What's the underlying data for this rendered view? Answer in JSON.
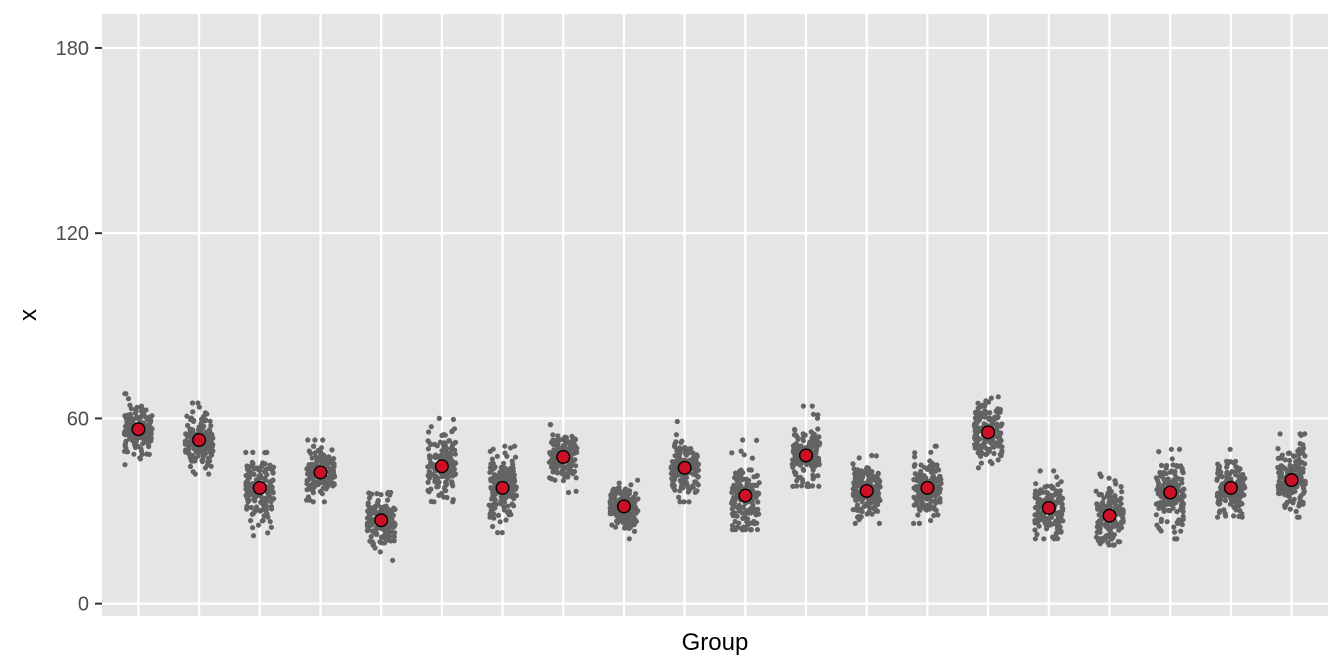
{
  "chart_data": {
    "type": "scatter",
    "title": "",
    "xlabel": "Group",
    "ylabel": "x",
    "ylim": [
      -4,
      191
    ],
    "yticks": [
      0,
      60,
      120,
      180
    ],
    "x_tick_labels_shown": false,
    "grid": true,
    "legend": "none",
    "colors": {
      "panel_background": "#e5e5e5",
      "grid_line": "#ffffff",
      "jitter_point": "#636363",
      "mean_fill": "#cc1126",
      "mean_stroke": "#000000"
    },
    "groups": [
      {
        "mean": 56.5,
        "min": 45,
        "max": 68
      },
      {
        "mean": 53.0,
        "min": 42,
        "max": 65
      },
      {
        "mean": 37.5,
        "min": 22,
        "max": 49
      },
      {
        "mean": 42.5,
        "min": 33,
        "max": 53
      },
      {
        "mean": 27.0,
        "min": 14,
        "max": 36
      },
      {
        "mean": 44.5,
        "min": 33,
        "max": 60
      },
      {
        "mean": 37.5,
        "min": 23,
        "max": 51
      },
      {
        "mean": 47.5,
        "min": 36,
        "max": 58
      },
      {
        "mean": 31.5,
        "min": 21,
        "max": 40
      },
      {
        "mean": 44.0,
        "min": 33,
        "max": 59
      },
      {
        "mean": 35.0,
        "min": 24,
        "max": 53
      },
      {
        "mean": 48.0,
        "min": 38,
        "max": 64
      },
      {
        "mean": 36.5,
        "min": 26,
        "max": 48
      },
      {
        "mean": 37.5,
        "min": 26,
        "max": 51
      },
      {
        "mean": 55.5,
        "min": 44,
        "max": 67
      },
      {
        "mean": 31.0,
        "min": 21,
        "max": 43
      },
      {
        "mean": 28.5,
        "min": 19,
        "max": 42
      },
      {
        "mean": 36.0,
        "min": 21,
        "max": 50
      },
      {
        "mean": 37.5,
        "min": 28,
        "max": 50
      },
      {
        "mean": 40.0,
        "min": 28,
        "max": 55
      }
    ]
  }
}
